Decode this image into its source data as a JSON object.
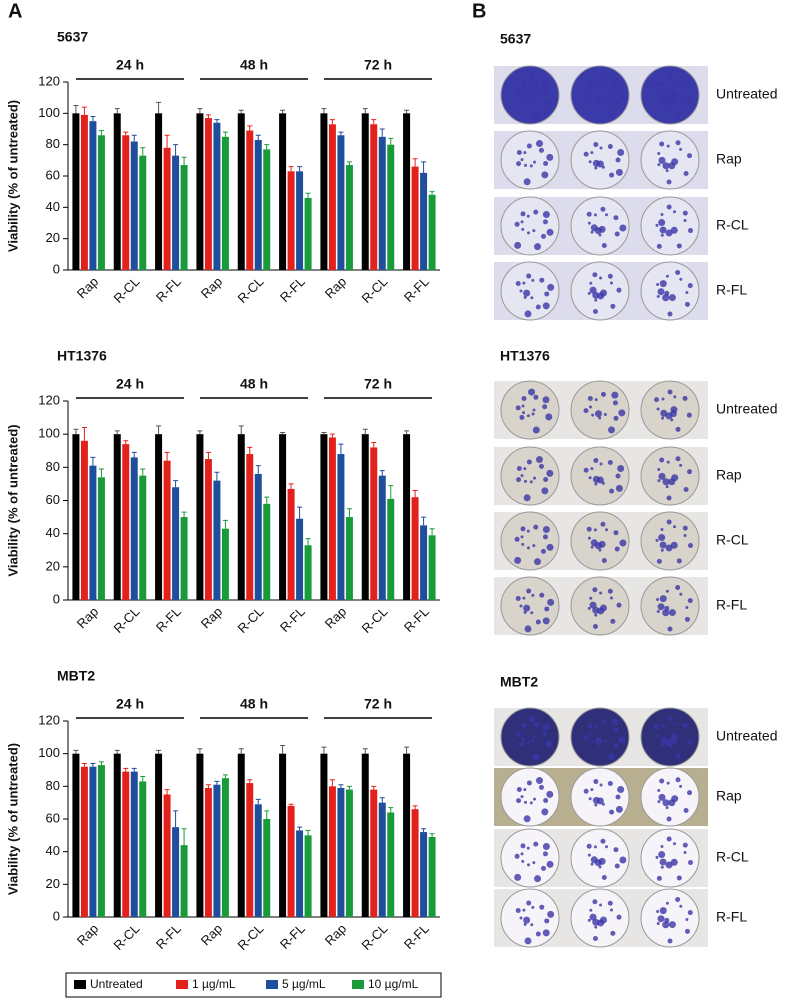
{
  "panel_labels": [
    "A",
    "B"
  ],
  "chart_data": [
    {
      "type": "bar",
      "title": "5637",
      "y_label": "Viability (% of untreated)",
      "groups": [
        "24 h",
        "48 h",
        "72 h"
      ],
      "categories": [
        "Rap",
        "R-CL",
        "R-FL",
        "Rap",
        "R-CL",
        "R-FL",
        "Rap",
        "R-CL",
        "R-FL"
      ],
      "ylim": [
        0,
        120
      ],
      "yticks": [
        0,
        20,
        40,
        60,
        80,
        100,
        120
      ],
      "series": [
        {
          "color": "#000000",
          "values": [
            100,
            100,
            100,
            100,
            100,
            100,
            100,
            100,
            100
          ],
          "errors": [
            5,
            3,
            7,
            3,
            2,
            2,
            3,
            3,
            2
          ]
        },
        {
          "color": "#e3211c",
          "values": [
            99,
            86,
            78,
            97,
            89,
            63,
            93,
            93,
            66
          ],
          "errors": [
            5,
            2,
            8,
            2,
            3,
            3,
            3,
            3,
            5
          ]
        },
        {
          "color": "#1f4e9c",
          "values": [
            95,
            82,
            73,
            94,
            83,
            63,
            86,
            85,
            62
          ],
          "errors": [
            3,
            4,
            7,
            2,
            3,
            3,
            2,
            5,
            7
          ]
        },
        {
          "color": "#1a9b3a",
          "values": [
            86,
            73,
            67,
            85,
            77,
            46,
            67,
            80,
            48
          ],
          "errors": [
            3,
            5,
            5,
            3,
            3,
            3,
            2,
            4,
            2
          ]
        }
      ]
    },
    {
      "type": "bar",
      "title": "HT1376",
      "y_label": "Viability (% of untreated)",
      "groups": [
        "24 h",
        "48 h",
        "72 h"
      ],
      "categories": [
        "Rap",
        "R-CL",
        "R-FL",
        "Rap",
        "R-CL",
        "R-FL",
        "Rap",
        "R-CL",
        "R-FL"
      ],
      "ylim": [
        0,
        120
      ],
      "yticks": [
        0,
        20,
        40,
        60,
        80,
        100,
        120
      ],
      "series": [
        {
          "color": "#000000",
          "values": [
            100,
            100,
            100,
            100,
            100,
            100,
            100,
            100,
            100
          ],
          "errors": [
            3,
            2,
            5,
            2,
            5,
            1,
            1,
            3,
            2
          ]
        },
        {
          "color": "#e3211c",
          "values": [
            96,
            94,
            84,
            85,
            88,
            67,
            98,
            92,
            62
          ],
          "errors": [
            8,
            2,
            5,
            4,
            4,
            3,
            2,
            3,
            4
          ]
        },
        {
          "color": "#1f4e9c",
          "values": [
            81,
            86,
            68,
            72,
            76,
            49,
            88,
            75,
            45
          ],
          "errors": [
            5,
            3,
            4,
            5,
            5,
            7,
            6,
            3,
            5
          ]
        },
        {
          "color": "#1a9b3a",
          "values": [
            74,
            75,
            50,
            43,
            58,
            33,
            50,
            61,
            39
          ],
          "errors": [
            5,
            4,
            3,
            5,
            4,
            4,
            5,
            8,
            4
          ]
        }
      ]
    },
    {
      "type": "bar",
      "title": "MBT2",
      "y_label": "Viability (% of untreated)",
      "groups": [
        "24 h",
        "48 h",
        "72 h"
      ],
      "categories": [
        "Rap",
        "R-CL",
        "R-FL",
        "Rap",
        "R-CL",
        "R-FL",
        "Rap",
        "R-CL",
        "R-FL"
      ],
      "ylim": [
        0,
        120
      ],
      "yticks": [
        0,
        20,
        40,
        60,
        80,
        100,
        120
      ],
      "series": [
        {
          "name": "Untreated",
          "color": "#000000",
          "values": [
            100,
            100,
            100,
            100,
            100,
            100,
            100,
            100,
            100
          ],
          "errors": [
            2,
            2,
            2,
            3,
            3,
            5,
            4,
            3,
            4
          ]
        },
        {
          "name": "1 µg/mL",
          "color": "#e3211c",
          "values": [
            92,
            89,
            75,
            79,
            82,
            68,
            80,
            78,
            66
          ],
          "errors": [
            2,
            2,
            3,
            2,
            2,
            1,
            4,
            2,
            2
          ]
        },
        {
          "name": "5 µg/mL",
          "color": "#1f4e9c",
          "values": [
            92,
            89,
            55,
            81,
            69,
            53,
            79,
            70,
            52
          ],
          "errors": [
            2,
            2,
            10,
            2,
            3,
            2,
            2,
            3,
            2
          ]
        },
        {
          "name": "10 µg/mL",
          "color": "#1a9b3a",
          "values": [
            93,
            83,
            44,
            85,
            60,
            50,
            78,
            64,
            49
          ],
          "errors": [
            2,
            3,
            10,
            2,
            5,
            3,
            2,
            3,
            2
          ]
        }
      ]
    }
  ],
  "panel_b": [
    {
      "title": "5637",
      "rows": [
        "Untreated",
        "Rap",
        "R-CL",
        "R-FL"
      ]
    },
    {
      "title": "HT1376",
      "rows": [
        "Untreated",
        "Rap",
        "R-CL",
        "R-FL"
      ]
    },
    {
      "title": "MBT2",
      "rows": [
        "Untreated",
        "Rap",
        "R-CL",
        "R-FL"
      ]
    }
  ]
}
